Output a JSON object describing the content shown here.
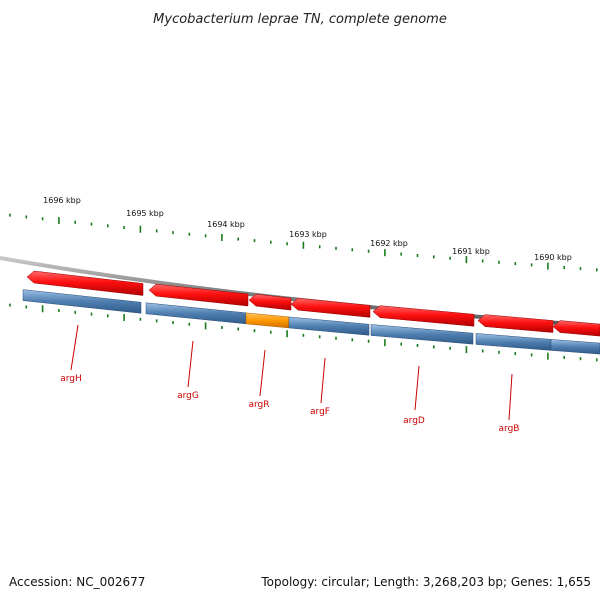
{
  "title": "Mycobacterium leprae TN, complete genome",
  "accession": "Accession: NC_002677",
  "summary": "Topology: circular; Length: 3,268,203 bp; Genes: 1,655",
  "colors": {
    "backbone": "#8a8a8a",
    "feature_forward": "#ff1a1a",
    "cds": "#4f7fb0",
    "highlight": "#ff9900",
    "tick": "#1a7a1a",
    "label": "#cc0000"
  },
  "ticks": [
    "1696 kbp",
    "1695 kbp",
    "1694 kbp",
    "1693 kbp",
    "1692 kbp",
    "1691 kbp",
    "1690 kbp"
  ],
  "genes": [
    "argH",
    "argG",
    "argR",
    "argF",
    "argD",
    "argB"
  ]
}
